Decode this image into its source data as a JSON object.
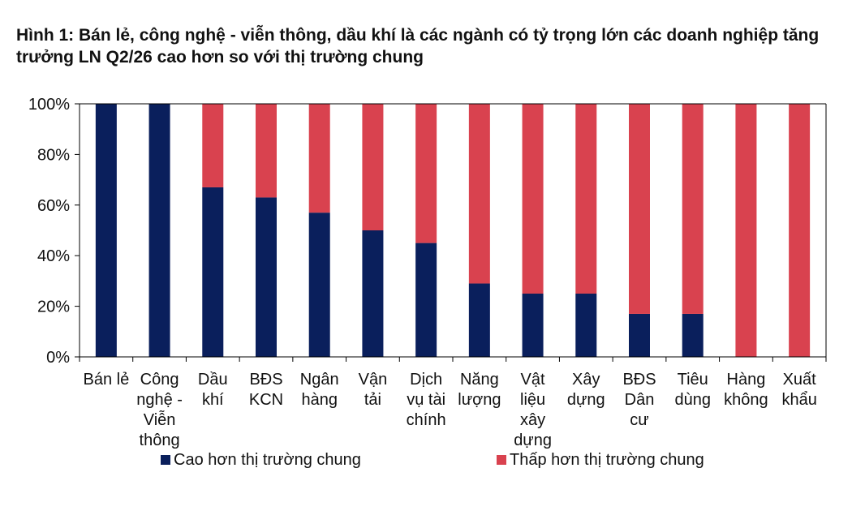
{
  "title": {
    "prefix": "Hình 1:",
    "text": "Bán lẻ, công nghệ - viễn thông, dầu khí là các ngành có tỷ trọng lớn các doanh nghiệp tăng trưởng LN Q2/26 cao hơn so với thị trường chung"
  },
  "chart_data": {
    "type": "bar",
    "stacked": true,
    "categories": [
      [
        "Bán lẻ"
      ],
      [
        "Công",
        "nghệ -",
        "Viễn",
        "thông"
      ],
      [
        "Dầu",
        "khí"
      ],
      [
        "BĐS",
        "KCN"
      ],
      [
        "Ngân",
        "hàng"
      ],
      [
        "Vận",
        "tải"
      ],
      [
        "Dịch",
        "vụ tài",
        "chính"
      ],
      [
        "Năng",
        "lượng"
      ],
      [
        "Vật",
        "liệu",
        "xây",
        "dựng"
      ],
      [
        "Xây",
        "dựng"
      ],
      [
        "BĐS",
        "Dân",
        "cư"
      ],
      [
        "Tiêu",
        "dùng"
      ],
      [
        "Hàng",
        "không"
      ],
      [
        "Xuất",
        "khẩu"
      ]
    ],
    "series": [
      {
        "name": "Cao hơn thị trường chung",
        "color": "#0a1f5c",
        "values": [
          100,
          100,
          67,
          63,
          57,
          50,
          45,
          29,
          25,
          25,
          17,
          17,
          0,
          0
        ]
      },
      {
        "name": "Thấp hơn thị trường chung",
        "color": "#d9424f",
        "values": [
          0,
          0,
          33,
          37,
          43,
          50,
          55,
          71,
          75,
          75,
          83,
          83,
          100,
          100
        ]
      }
    ],
    "ylim": [
      0,
      100
    ],
    "yticks": [
      "0%",
      "20%",
      "40%",
      "60%",
      "80%",
      "100%"
    ],
    "grid": false,
    "legend_position": "bottom"
  }
}
